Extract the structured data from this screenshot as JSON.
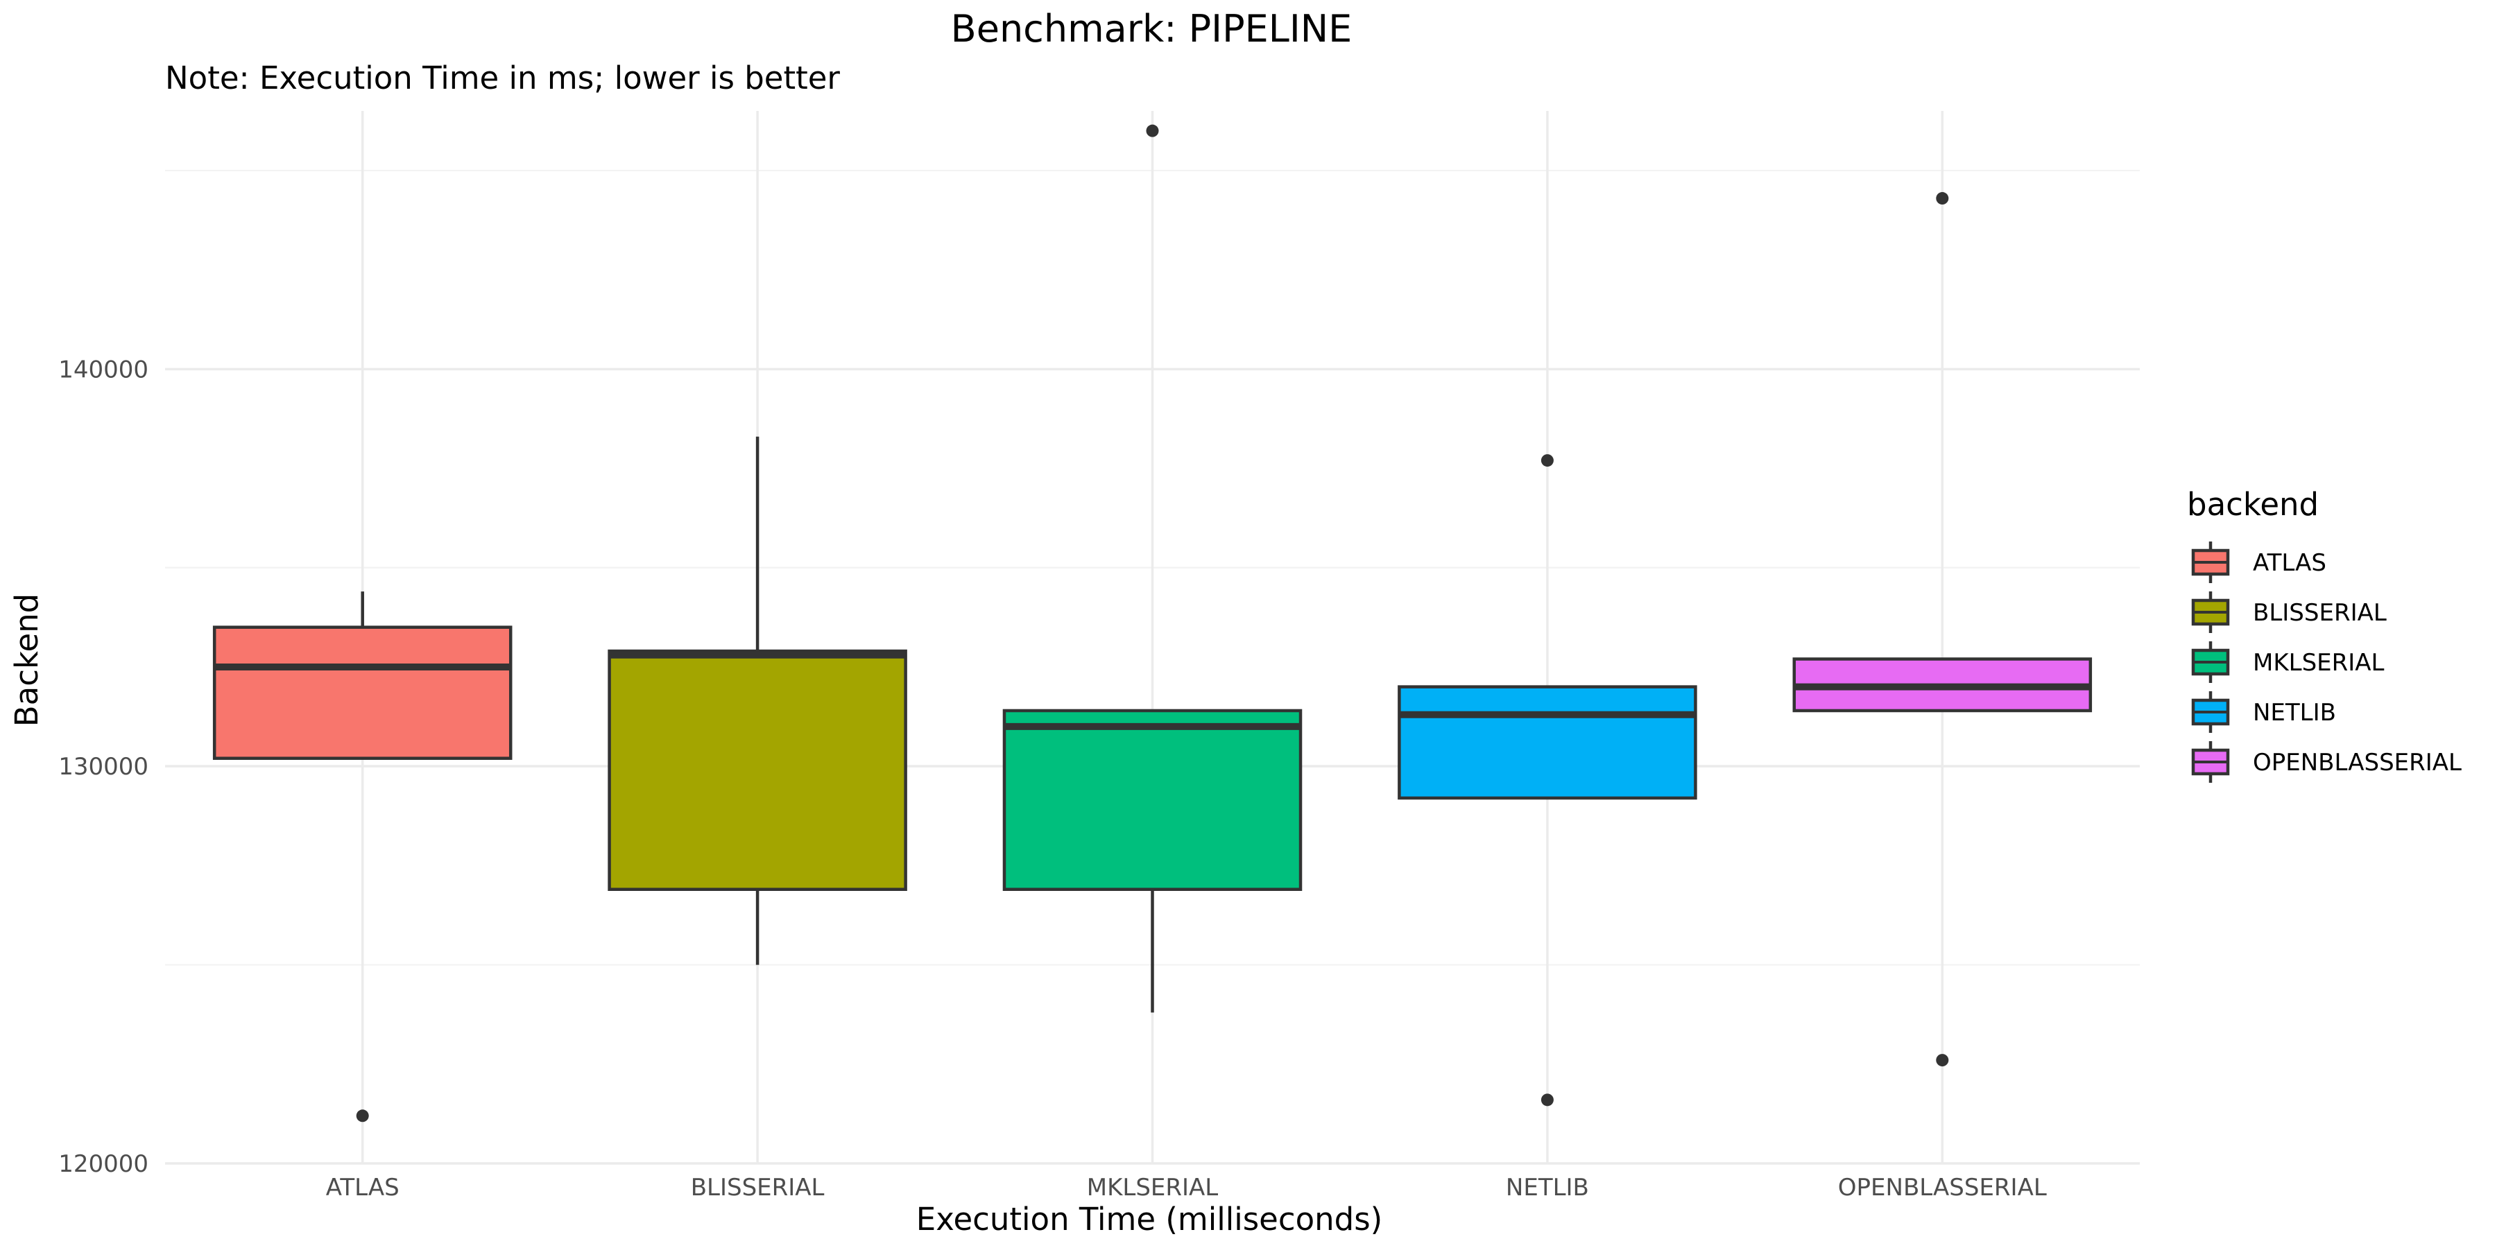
{
  "chart_data": {
    "type": "box",
    "title": "Benchmark: PIPELINE",
    "subtitle": "Note: Execution Time in ms; lower is better",
    "xlabel": "Execution Time (milliseconds)",
    "ylabel": "Backend",
    "ylim": [
      120000,
      146500
    ],
    "yticks": [
      120000,
      130000,
      140000
    ],
    "ytick_labels": [
      "120000",
      "130000",
      "140000"
    ],
    "grid": true,
    "legend": {
      "title": "backend",
      "position": "right"
    },
    "categories": [
      "ATLAS",
      "BLISSERIAL",
      "MKLSERIAL",
      "NETLIB",
      "OPENBLASSERIAL"
    ],
    "series": [
      {
        "name": "ATLAS",
        "color": "#F8766D",
        "whisker_low": 130200,
        "q1": 130200,
        "median": 132500,
        "q3": 133500,
        "whisker_high": 134400,
        "outliers": [
          121200
        ]
      },
      {
        "name": "BLISSERIAL",
        "color": "#A3A500",
        "whisker_low": 125000,
        "q1": 126900,
        "median": 132800,
        "q3": 132900,
        "whisker_high": 138300,
        "outliers": []
      },
      {
        "name": "MKLSERIAL",
        "color": "#00BF7D",
        "whisker_low": 123800,
        "q1": 126900,
        "median": 131000,
        "q3": 131400,
        "whisker_high": 131400,
        "outliers": [
          146000
        ]
      },
      {
        "name": "NETLIB",
        "color": "#00B0F6",
        "whisker_low": 129200,
        "q1": 129200,
        "median": 131300,
        "q3": 132000,
        "whisker_high": 132000,
        "outliers": [
          121600,
          137700
        ]
      },
      {
        "name": "OPENBLASSERIAL",
        "color": "#E76BF3",
        "whisker_low": 131400,
        "q1": 131400,
        "median": 132000,
        "q3": 132700,
        "whisker_high": 132700,
        "outliers": [
          122600,
          144300
        ]
      }
    ]
  }
}
